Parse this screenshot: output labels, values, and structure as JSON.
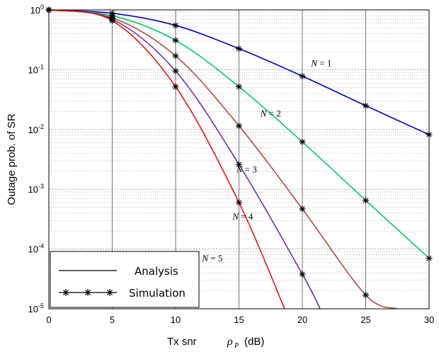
{
  "chart_data": {
    "type": "line",
    "xlabel_prefix": "Tx snr",
    "xlabel_symbol": "ρ",
    "xlabel_sub": "P",
    "xlabel_unit": "(dB)",
    "ylabel": "Outage prob. of SR",
    "xlim": [
      0,
      30
    ],
    "ylim": [
      1e-05,
      1
    ],
    "yscale": "log",
    "grid": true,
    "x_ticks": [
      "0",
      "5",
      "10",
      "15",
      "20",
      "25",
      "30"
    ],
    "y_ticks": [
      {
        "base": "10",
        "exp": "0"
      },
      {
        "base": "10",
        "exp": "-1"
      },
      {
        "base": "10",
        "exp": "-2"
      },
      {
        "base": "10",
        "exp": "-3"
      },
      {
        "base": "10",
        "exp": "-4"
      },
      {
        "base": "10",
        "exp": "-5"
      }
    ],
    "legend": {
      "position": "bottom-left",
      "items": [
        {
          "label": "Analysis",
          "style": "line"
        },
        {
          "label": "Simulation",
          "style": "line-star"
        }
      ]
    },
    "series": [
      {
        "label": "N = 1",
        "color": "#0000cc",
        "x": [
          0,
          5,
          10,
          15,
          20,
          25,
          30
        ],
        "y": [
          1.0,
          0.88,
          0.55,
          0.225,
          0.078,
          0.025,
          0.0082
        ]
      },
      {
        "label": "N = 2",
        "color": "#00cc66",
        "x": [
          0,
          5,
          10,
          15,
          20,
          25,
          30
        ],
        "y": [
          1.0,
          0.8,
          0.31,
          0.052,
          0.0062,
          0.00065,
          7e-05
        ]
      },
      {
        "label": "N = 3",
        "color": "#b84a3a",
        "x": [
          0,
          5,
          10,
          15,
          20,
          25,
          27.5
        ],
        "y": [
          1.0,
          0.74,
          0.17,
          0.0115,
          0.00047,
          1.7e-05,
          1e-05
        ]
      },
      {
        "label": "N = 4",
        "color": "#7030a0",
        "x": [
          0,
          5,
          10,
          15,
          20,
          21.4
        ],
        "y": [
          1.0,
          0.7,
          0.095,
          0.0026,
          3.8e-05,
          1e-05
        ]
      },
      {
        "label": "N = 5",
        "color": "#ee1111",
        "x": [
          0,
          5,
          10,
          15,
          18.6
        ],
        "y": [
          1.0,
          0.66,
          0.052,
          0.0006,
          1e-05
        ]
      }
    ],
    "markers_x": [
      0,
      5,
      10,
      15,
      20,
      25,
      30
    ]
  }
}
